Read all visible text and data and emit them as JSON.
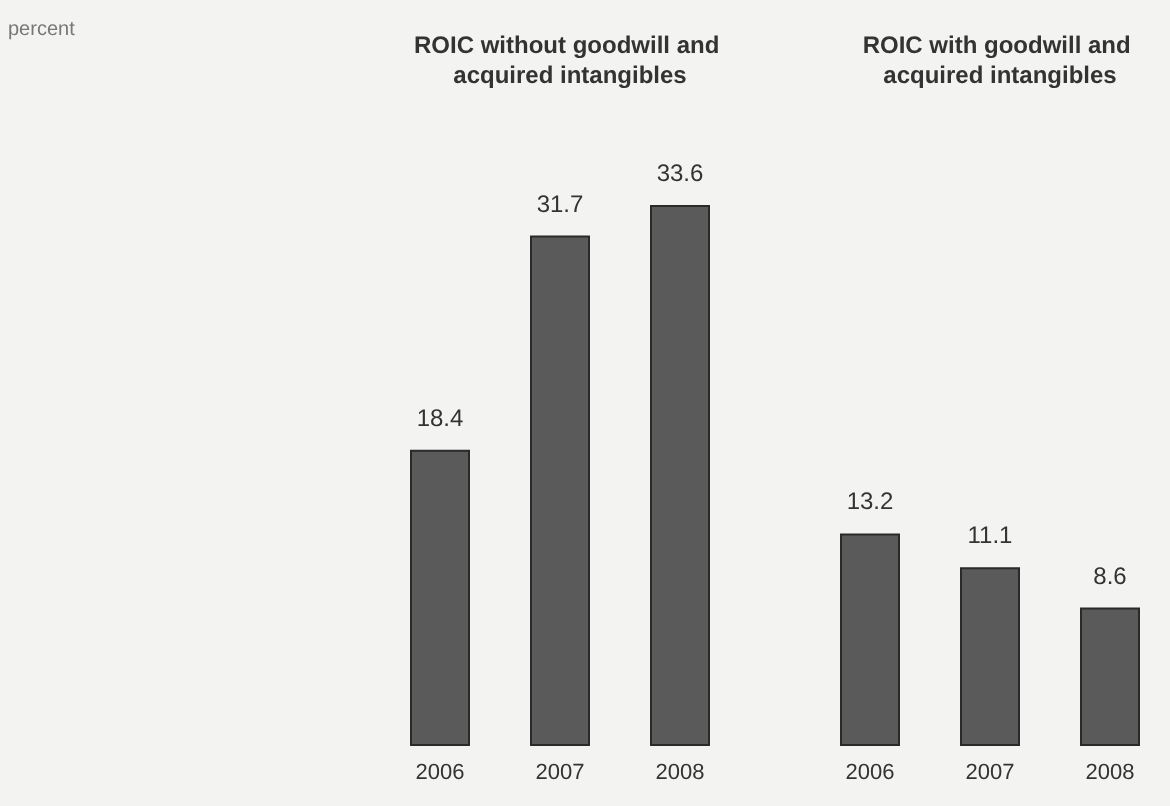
{
  "chart_data": [
    {
      "type": "bar",
      "title": "ROIC without goodwill and acquired intangibles",
      "ylabel": "percent",
      "categories": [
        "2006",
        "2007",
        "2008"
      ],
      "values": [
        18.4,
        31.7,
        33.6
      ],
      "color": "#5a5a5a",
      "data_labels": true
    },
    {
      "type": "bar",
      "title": "ROIC with goodwill and acquired intangibles",
      "categories": [
        "2006",
        "2007",
        "2008"
      ],
      "values": [
        13.2,
        11.1,
        8.6
      ],
      "color": "#5a5a5a",
      "data_labels": true
    }
  ]
}
